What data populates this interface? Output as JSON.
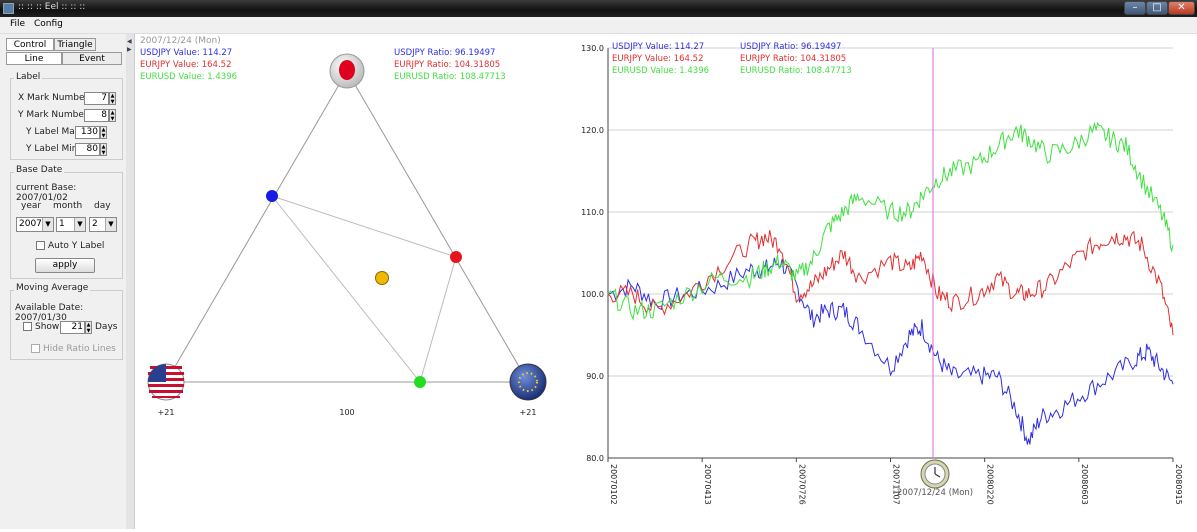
{
  "window": {
    "title": ":: :: :: Eel :: :: ::"
  },
  "menu": [
    "File",
    "Config"
  ],
  "tabs_top": [
    "Control",
    "Triangle"
  ],
  "tabs_sub": [
    "Line",
    "Event"
  ],
  "label_group": {
    "title": "Label",
    "x_mark_label": "X Mark Number",
    "x_mark_value": "7",
    "y_mark_label": "Y Mark Number",
    "y_mark_value": "8",
    "y_max_label": "Y Label Max",
    "y_max_value": "130",
    "y_min_label": "Y Label Min",
    "y_min_value": "80"
  },
  "base_date": {
    "title": "Base Date",
    "current": "current Base: 2007/01/02",
    "year_label": "year",
    "month_label": "month",
    "day_label": "day",
    "year": "2007",
    "month": "1",
    "day": "2",
    "auto_y": "Auto Y Label",
    "apply": "apply"
  },
  "moving_average": {
    "title": "Moving Average",
    "available": "Available Date: 2007/01/30",
    "show": "Show",
    "days_value": "21",
    "days": "Days",
    "hide": "Hide Ratio Lines"
  },
  "triangle": {
    "date": "2007/12/24 (Mon)",
    "values": [
      "USDJPY Value: 114.27",
      "EURJPY Value: 164.52",
      "EURUSD Value: 1.4396"
    ],
    "ratios": [
      "USDJPY Ratio: 96.19497",
      "EURJPY Ratio: 104.31805",
      "EURUSD Ratio: 108.47713"
    ],
    "bottom_left": "+21",
    "bottom_center": "100",
    "bottom_right": "+21",
    "flags": [
      "japan-flag-icon",
      "usa-flag-icon",
      "eu-flag-icon"
    ]
  },
  "legend": {
    "values": [
      "USDJPY Value: 114.27",
      "EURJPY Value: 164.52",
      "EURUSD Value: 1.4396"
    ],
    "ratios": [
      "USDJPY Ratio: 96.19497",
      "EURJPY Ratio: 104.31805",
      "EURUSD Ratio: 108.47713"
    ]
  },
  "cursor_label": "2007/12/24 (Mon)",
  "colors": {
    "usdjpy": "#3030e0",
    "eurjpy": "#e03030",
    "eurusd": "#40e040",
    "cursor": "#e080e0"
  },
  "chart_data": {
    "type": "line",
    "ylim": [
      80,
      130
    ],
    "yticks": [
      "130.0",
      "120.0",
      "110.0",
      "100.0",
      "90.0",
      "80.0"
    ],
    "xticks": [
      "20070102",
      "20070413",
      "20070726",
      "20071107",
      "20080220",
      "20080603",
      "20080915"
    ],
    "cursor_date": "2007/12/24",
    "series": [
      {
        "name": "USDJPY",
        "color": "#3030e0",
        "points": [
          [
            0,
            100
          ],
          [
            8,
            101
          ],
          [
            15,
            99
          ],
          [
            25,
            100
          ],
          [
            35,
            101
          ],
          [
            45,
            103
          ],
          [
            50,
            103
          ],
          [
            55,
            104
          ],
          [
            60,
            101
          ],
          [
            65,
            97
          ],
          [
            70,
            98
          ],
          [
            75,
            98
          ],
          [
            80,
            96
          ],
          [
            90,
            91
          ],
          [
            96,
            95
          ],
          [
            100,
            96
          ],
          [
            105,
            92
          ],
          [
            110,
            90
          ],
          [
            118,
            90
          ],
          [
            124,
            90
          ],
          [
            130,
            86
          ],
          [
            134,
            82
          ],
          [
            138,
            85
          ],
          [
            144,
            86
          ],
          [
            152,
            88
          ],
          [
            160,
            90
          ],
          [
            168,
            92
          ],
          [
            172,
            93
          ],
          [
            176,
            91
          ],
          [
            180,
            89
          ]
        ]
      },
      {
        "name": "EURJPY",
        "color": "#e03030",
        "points": [
          [
            0,
            100
          ],
          [
            8,
            100
          ],
          [
            15,
            98
          ],
          [
            25,
            100
          ],
          [
            35,
            103
          ],
          [
            45,
            106
          ],
          [
            50,
            107
          ],
          [
            55,
            106
          ],
          [
            60,
            100
          ],
          [
            65,
            101
          ],
          [
            70,
            103
          ],
          [
            75,
            105
          ],
          [
            80,
            102
          ],
          [
            90,
            104
          ],
          [
            96,
            103
          ],
          [
            100,
            105
          ],
          [
            105,
            100
          ],
          [
            110,
            99
          ],
          [
            118,
            100
          ],
          [
            124,
            102
          ],
          [
            130,
            100
          ],
          [
            134,
            100
          ],
          [
            140,
            101
          ],
          [
            148,
            104
          ],
          [
            155,
            106
          ],
          [
            160,
            107
          ],
          [
            165,
            107
          ],
          [
            170,
            106
          ],
          [
            176,
            101
          ],
          [
            180,
            95
          ]
        ]
      },
      {
        "name": "EURUSD",
        "color": "#40e040",
        "points": [
          [
            0,
            100
          ],
          [
            8,
            98
          ],
          [
            15,
            98
          ],
          [
            25,
            100
          ],
          [
            35,
            102
          ],
          [
            45,
            102
          ],
          [
            50,
            103
          ],
          [
            55,
            104
          ],
          [
            60,
            102
          ],
          [
            65,
            104
          ],
          [
            70,
            108
          ],
          [
            75,
            110
          ],
          [
            80,
            112
          ],
          [
            90,
            110
          ],
          [
            96,
            110
          ],
          [
            100,
            112
          ],
          [
            105,
            114
          ],
          [
            110,
            115
          ],
          [
            118,
            116
          ],
          [
            124,
            118
          ],
          [
            130,
            120
          ],
          [
            134,
            119
          ],
          [
            140,
            117
          ],
          [
            148,
            118
          ],
          [
            155,
            120
          ],
          [
            160,
            119
          ],
          [
            165,
            118
          ],
          [
            170,
            114
          ],
          [
            176,
            110
          ],
          [
            180,
            106
          ]
        ]
      }
    ]
  }
}
